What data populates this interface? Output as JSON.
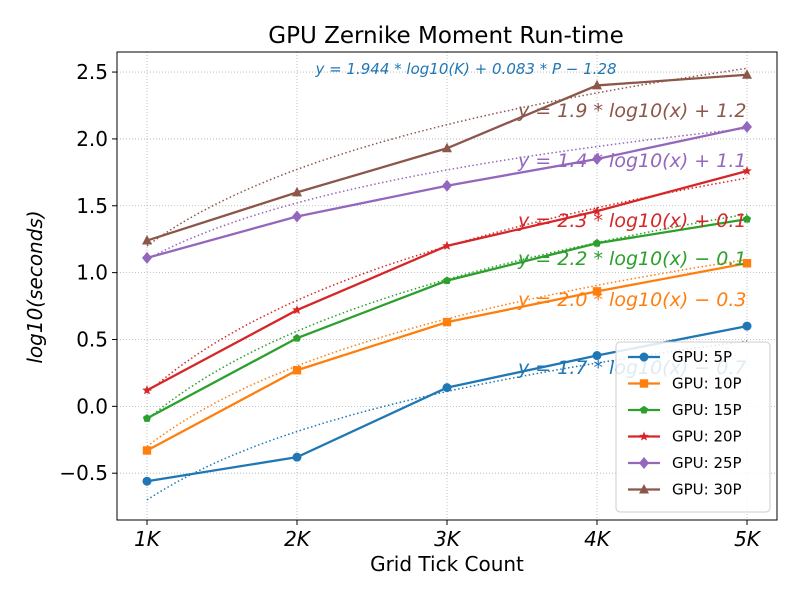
{
  "chart_data": {
    "type": "line",
    "title": "GPU Zernike Moment Run-time",
    "xlabel": "Grid Tick Count",
    "ylabel": "log10(seconds)",
    "x": [
      1,
      2,
      3,
      4,
      5
    ],
    "x_tick_labels": [
      "1K",
      "2K",
      "3K",
      "4K",
      "5K"
    ],
    "xlim": [
      0.8,
      5.2
    ],
    "ylim": [
      -0.85,
      2.65
    ],
    "y_ticks": [
      -0.5,
      0.0,
      0.5,
      1.0,
      1.5,
      2.0,
      2.5
    ],
    "y_tick_labels": [
      "−0.5",
      "0.0",
      "0.5",
      "1.0",
      "1.5",
      "2.0",
      "2.5"
    ],
    "grid": true,
    "legend_position": "bottom-right",
    "formula_annotation": "y = 1.944 * log10(K) + 0.083 * P − 1.28",
    "series": [
      {
        "name": "GPU: 5P",
        "color": "#1f77b4",
        "marker": "circle",
        "values": [
          -0.56,
          -0.38,
          0.14,
          0.38,
          0.6
        ],
        "fit": {
          "label": "y = 1.7 * log10(x) − 0.7",
          "slope": 1.7,
          "intercept": -0.7
        }
      },
      {
        "name": "GPU: 10P",
        "color": "#ff7f0e",
        "marker": "square",
        "values": [
          -0.33,
          0.27,
          0.63,
          0.86,
          1.07
        ],
        "fit": {
          "label": "y = 2.0 * log10(x) − 0.3",
          "slope": 2.0,
          "intercept": -0.3
        }
      },
      {
        "name": "GPU: 15P",
        "color": "#2ca02c",
        "marker": "pentagon",
        "values": [
          -0.09,
          0.51,
          0.94,
          1.22,
          1.4
        ],
        "fit": {
          "label": "y = 2.2 * log10(x) − 0.1",
          "slope": 2.2,
          "intercept": -0.1
        }
      },
      {
        "name": "GPU: 20P",
        "color": "#d62728",
        "marker": "star",
        "values": [
          0.12,
          0.72,
          1.2,
          1.46,
          1.76
        ],
        "fit": {
          "label": "y = 2.3 * log10(x) + 0.1",
          "slope": 2.3,
          "intercept": 0.1
        }
      },
      {
        "name": "GPU: 25P",
        "color": "#9467bd",
        "marker": "diamond",
        "values": [
          1.11,
          1.42,
          1.65,
          1.85,
          2.09
        ],
        "fit": {
          "label": "y = 1.4 * log10(x) + 1.1",
          "slope": 1.4,
          "intercept": 1.1
        }
      },
      {
        "name": "GPU: 30P",
        "color": "#8c564b",
        "marker": "triangle",
        "values": [
          1.24,
          1.6,
          1.93,
          2.4,
          2.48
        ],
        "fit": {
          "label": "y = 1.9 * log10(x) + 1.2",
          "slope": 1.9,
          "intercept": 1.2
        }
      }
    ]
  }
}
